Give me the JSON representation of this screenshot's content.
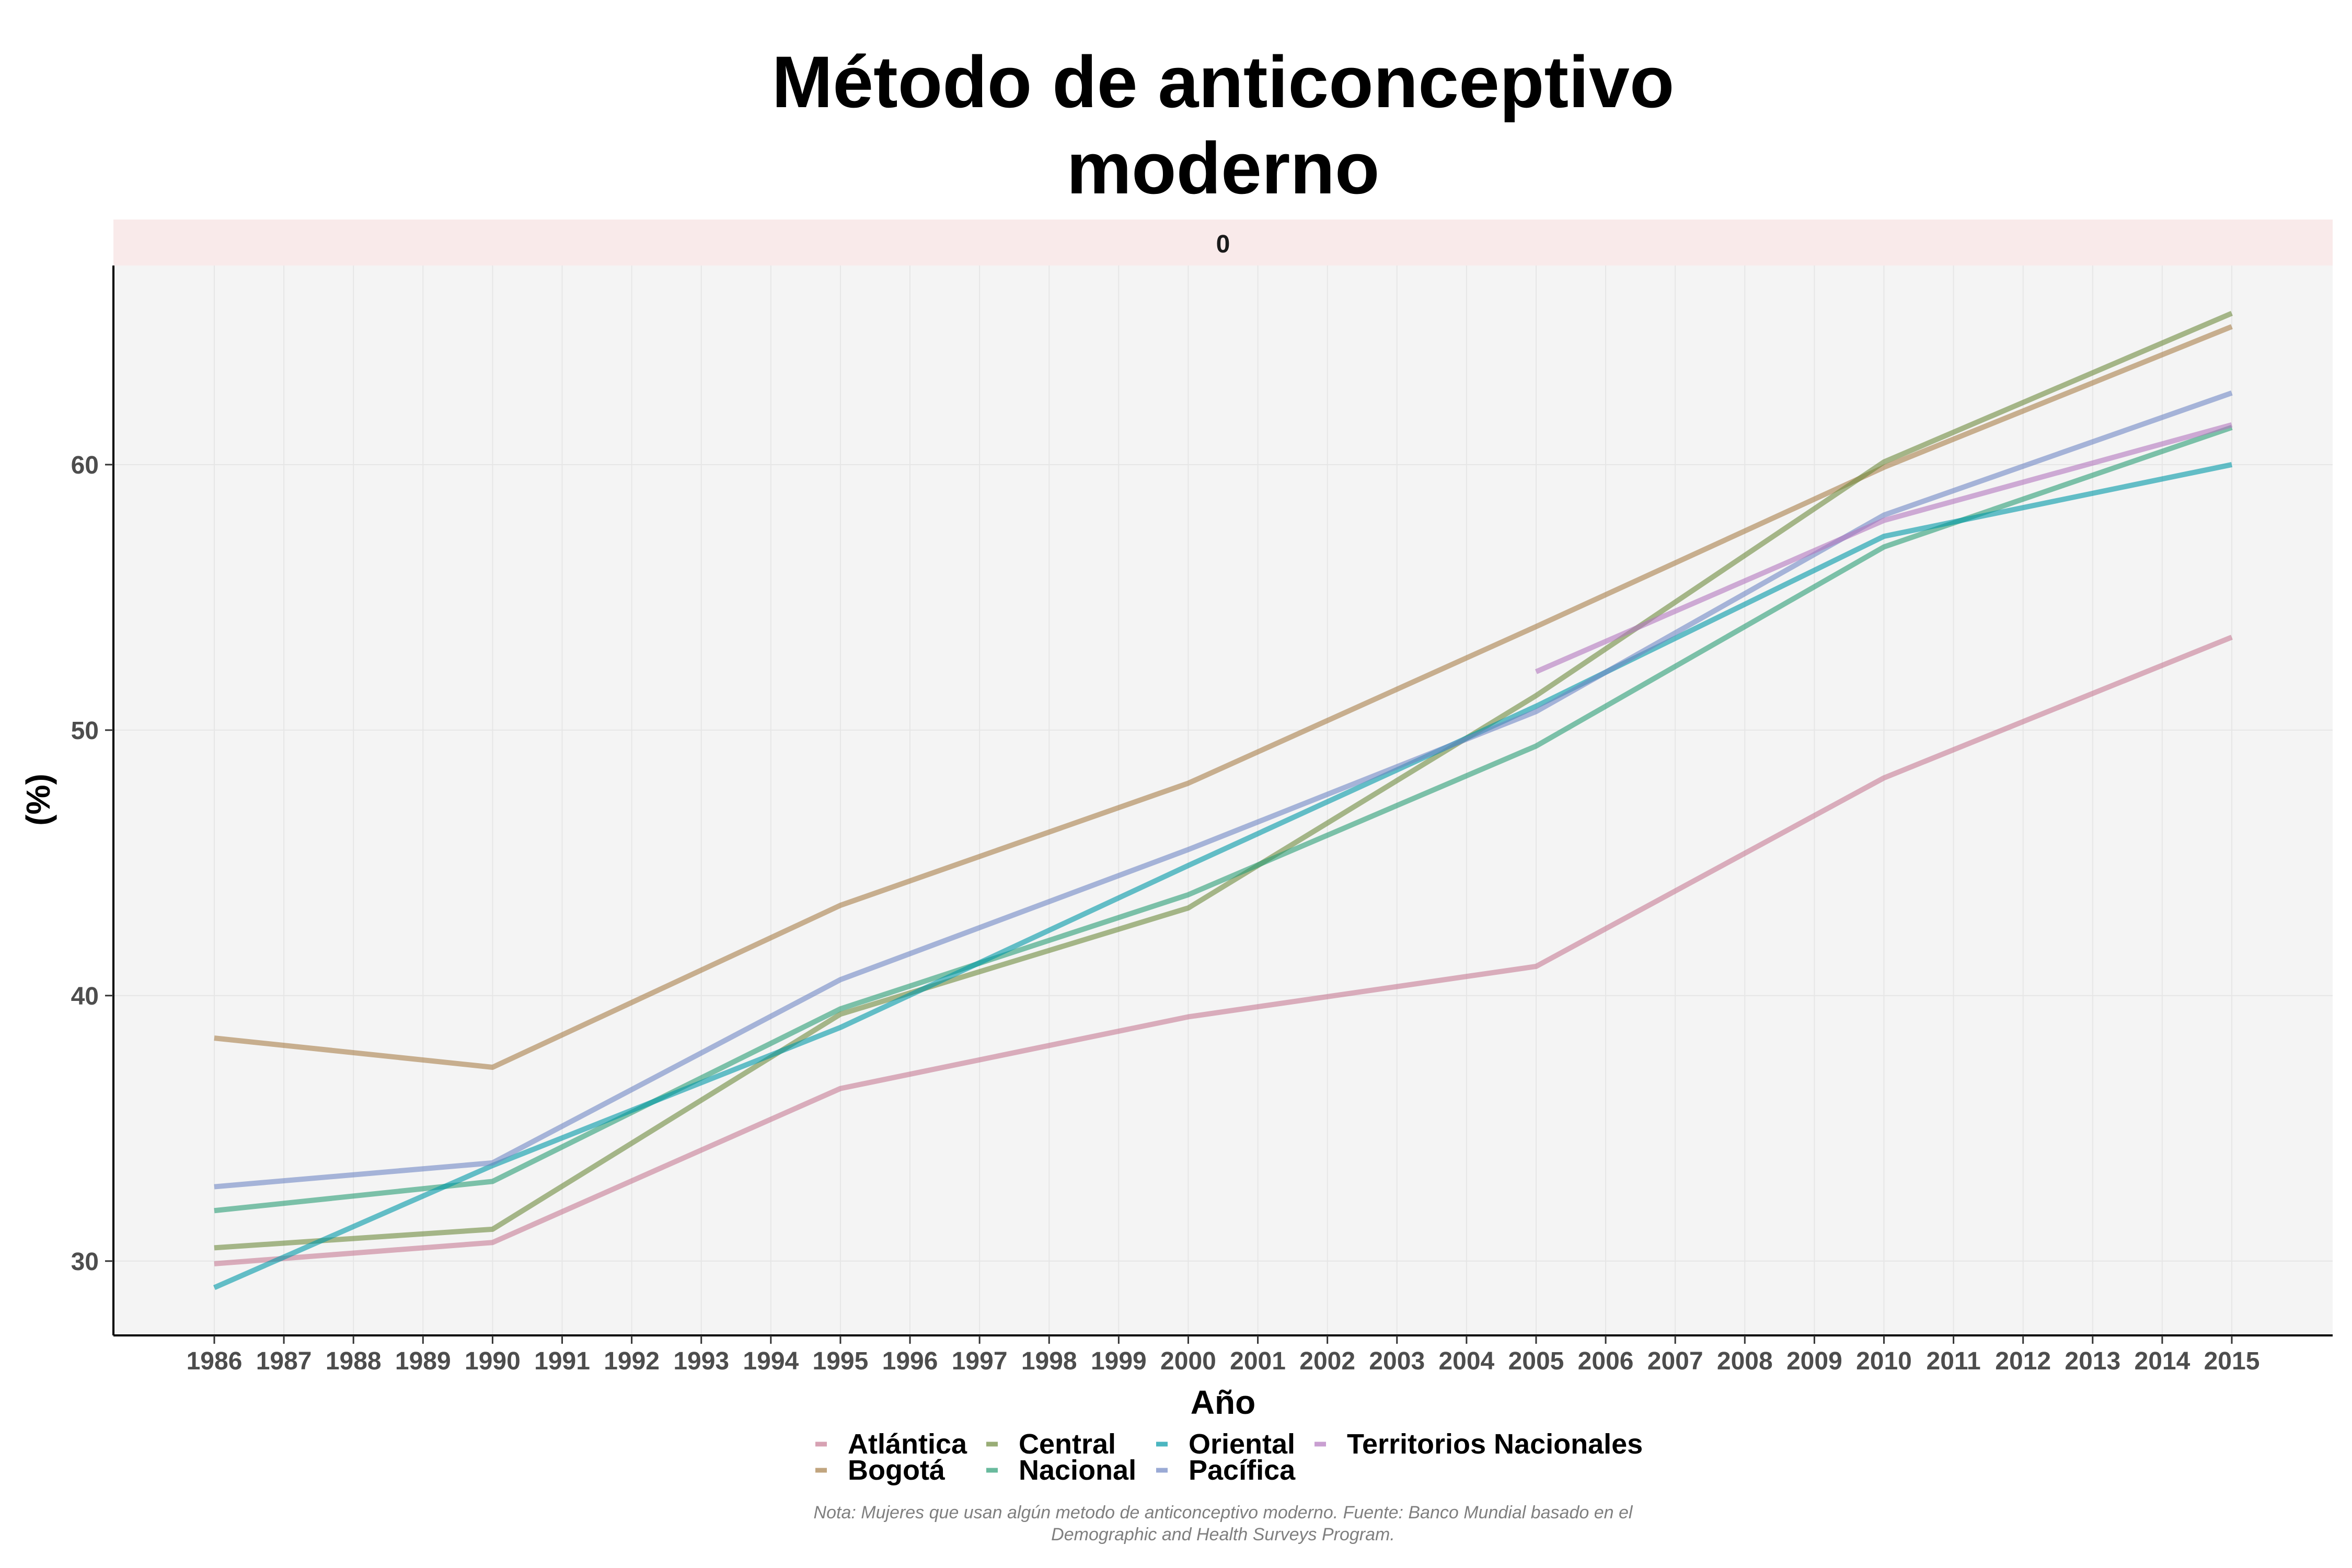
{
  "chart_data": {
    "type": "line",
    "title_lines": [
      "Método de anticonceptivo",
      "moderno"
    ],
    "facet_label": "0",
    "xlabel": "Año",
    "ylabel": "(%)",
    "x_ticks": [
      1986,
      1987,
      1988,
      1989,
      1990,
      1991,
      1992,
      1993,
      1994,
      1995,
      1996,
      1997,
      1998,
      1999,
      2000,
      2001,
      2002,
      2003,
      2004,
      2005,
      2006,
      2007,
      2008,
      2009,
      2010,
      2011,
      2012,
      2013,
      2014,
      2015
    ],
    "xlim": [
      1984.55,
      2016.45
    ],
    "y_ticks": [
      30,
      40,
      50,
      60
    ],
    "ylim": [
      27.2,
      67.5
    ],
    "grid": true,
    "legend_position": "bottom",
    "series": [
      {
        "name": "Atlántica",
        "color": "#C77C94",
        "x": [
          1986,
          1990,
          1995,
          2000,
          2005,
          2010,
          2015
        ],
        "y": [
          29.9,
          30.7,
          36.5,
          39.2,
          41.1,
          48.2,
          53.5
        ]
      },
      {
        "name": "Bogotá",
        "color": "#A87F4A",
        "x": [
          1986,
          1990,
          1995,
          2000,
          2005,
          2010,
          2015
        ],
        "y": [
          38.4,
          37.3,
          43.4,
          48.0,
          53.9,
          59.9,
          65.2
        ]
      },
      {
        "name": "Central",
        "color": "#6E8B3D",
        "x": [
          1986,
          1990,
          1995,
          2000,
          2005,
          2010,
          2015
        ],
        "y": [
          30.5,
          31.2,
          39.3,
          43.3,
          51.3,
          60.1,
          65.7
        ]
      },
      {
        "name": "Nacional",
        "color": "#2A9D74",
        "x": [
          1986,
          1990,
          1995,
          2000,
          2005,
          2010,
          2015
        ],
        "y": [
          31.9,
          33.0,
          39.5,
          43.8,
          49.4,
          56.9,
          61.4
        ]
      },
      {
        "name": "Oriental",
        "color": "#0098A6",
        "x": [
          1986,
          1990,
          1995,
          2000,
          2005,
          2010,
          2015
        ],
        "y": [
          29.0,
          33.6,
          38.8,
          44.9,
          50.9,
          57.3,
          60.0
        ]
      },
      {
        "name": "Pacífica",
        "color": "#7087C4",
        "x": [
          1986,
          1990,
          1995,
          2000,
          2005,
          2010,
          2015
        ],
        "y": [
          32.8,
          33.7,
          40.6,
          45.5,
          50.7,
          58.1,
          62.7
        ]
      },
      {
        "name": "Territorios Nacionales",
        "color": "#B377BE",
        "x": [
          2005,
          2010,
          2015
        ],
        "y": [
          52.2,
          57.9,
          61.5
        ]
      }
    ],
    "legend_rows": [
      [
        "Atlántica",
        "Central",
        "Oriental",
        "Territorios Nacionales"
      ],
      [
        "Bogotá",
        "Nacional",
        "Pacífica"
      ]
    ],
    "note_lines": [
      "Nota: Mujeres que usan algún metodo de anticonceptivo moderno. Fuente: Banco Mundial basado en el",
      "Demographic and Health Surveys Program."
    ]
  }
}
